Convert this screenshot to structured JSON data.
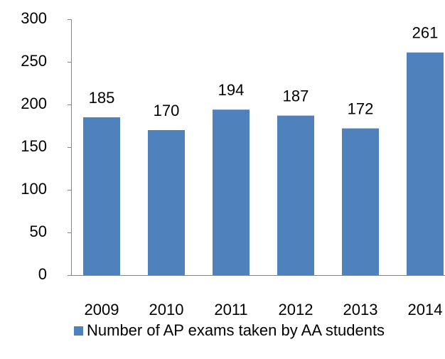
{
  "chart_data": {
    "type": "bar",
    "categories": [
      "2009",
      "2010",
      "2011",
      "2012",
      "2013",
      "2014"
    ],
    "series": [
      {
        "name": "Number of AP exams taken by AA students",
        "color": "#4f81bd",
        "values": [
          185,
          170,
          194,
          187,
          172,
          261
        ]
      }
    ],
    "ylim": [
      0,
      300
    ],
    "yticks": [
      0,
      50,
      100,
      150,
      200,
      250,
      300
    ],
    "grid": false,
    "legend": "bottom"
  }
}
